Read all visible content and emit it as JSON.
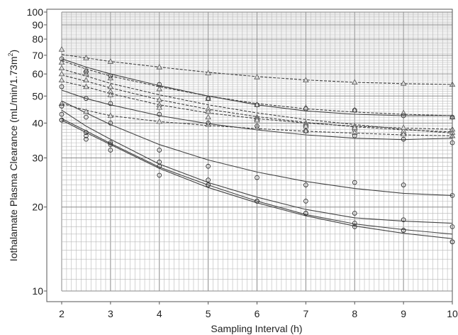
{
  "chart_data": {
    "type": "scatter",
    "title": "",
    "xlabel": "Sampling Interval (h)",
    "ylabel_main": "Iothalamate Plasma Clearance (mL/min/1.73m",
    "ylabel_sup": "2",
    "ylabel_end": ")",
    "xscale": "linear",
    "yscale": "log",
    "xlim": [
      2,
      10
    ],
    "ylim": [
      10,
      100
    ],
    "grid": true,
    "legend": "none",
    "x_ticks": [
      2,
      3,
      4,
      5,
      6,
      7,
      8,
      9,
      10
    ],
    "y_ticks": [
      10,
      20,
      30,
      40,
      50,
      60,
      70,
      80,
      90,
      100
    ],
    "x": [
      2,
      2.5,
      3,
      4,
      5,
      6,
      7,
      8,
      9,
      10
    ],
    "series": [
      {
        "marker": "triangle",
        "line_style": "dashed",
        "values": [
          73.5,
          68.5,
          66.5,
          63.5,
          60.5,
          58.5,
          57,
          56,
          55.5,
          55
        ],
        "fit": [
          70.5,
          68.5,
          66.5,
          63.5,
          60.8,
          58.7,
          57.1,
          56.0,
          55.4,
          55.0
        ]
      },
      {
        "marker": "triangle",
        "line_style": "dashed",
        "values": [
          66,
          62,
          58,
          53,
          49,
          46.5,
          45.5,
          44.5,
          43.5,
          42
        ],
        "fit": [
          67.0,
          62.5,
          59.0,
          54.0,
          50.0,
          47.0,
          45.0,
          43.8,
          43.0,
          42.5
        ]
      },
      {
        "marker": "triangle",
        "line_style": "dashed",
        "values": [
          63,
          60,
          54,
          48.5,
          45,
          42,
          40,
          39,
          37,
          36
        ],
        "fit": [
          62.5,
          59.0,
          55.5,
          50.5,
          46.5,
          43.5,
          41.2,
          39.5,
          38.0,
          36.8
        ]
      },
      {
        "marker": "triangle",
        "line_style": "dashed",
        "values": [
          60,
          57,
          52,
          46.5,
          44,
          41.5,
          39.5,
          38,
          37.5,
          37
        ],
        "fit": [
          59.5,
          56.5,
          53.5,
          48.5,
          44.8,
          42.2,
          40.2,
          38.8,
          37.8,
          37.2
        ]
      },
      {
        "marker": "triangle",
        "line_style": "dashed",
        "values": [
          57,
          54,
          50.5,
          45.5,
          42,
          41,
          39,
          38.5,
          38.5,
          38
        ],
        "fit": [
          56.5,
          54.0,
          51.0,
          46.5,
          43.5,
          41.5,
          40.0,
          39.0,
          38.4,
          38.0
        ]
      },
      {
        "marker": "triangle",
        "line_style": "dashed",
        "values": [
          47,
          44,
          42.5,
          40.5,
          39.5,
          38.5,
          37.5,
          37,
          36.5,
          36
        ],
        "fit": [
          47.0,
          44.5,
          42.5,
          40.5,
          39.2,
          38.2,
          37.4,
          36.8,
          36.3,
          36.0
        ]
      },
      {
        "marker": "circle",
        "line_style": "solid",
        "values": [
          68,
          61,
          59,
          55,
          49,
          46.5,
          45,
          44.5,
          42.5,
          42
        ],
        "fit": [
          68.0,
          63.5,
          60.0,
          54.5,
          50.0,
          46.5,
          44.2,
          43.0,
          42.5,
          42.5
        ]
      },
      {
        "marker": "circle",
        "line_style": "solid",
        "values": [
          54,
          49,
          47,
          43,
          40,
          39,
          37.5,
          36,
          35,
          34
        ],
        "fit": [
          52.5,
          49.0,
          46.5,
          42.5,
          39.8,
          37.8,
          36.3,
          35.3,
          34.9,
          35.3
        ]
      },
      {
        "marker": "circle",
        "line_style": "solid",
        "values": [
          46,
          42,
          40,
          32,
          28,
          25.5,
          24,
          24.5,
          24,
          22
        ],
        "fit": [
          48.0,
          43.5,
          39.5,
          33.5,
          29.5,
          26.7,
          24.7,
          23.3,
          22.4,
          22.0
        ]
      },
      {
        "marker": "circle",
        "line_style": "solid",
        "values": [
          43,
          37,
          34,
          29,
          25,
          21,
          21,
          19,
          18,
          17
        ],
        "fit": [
          44.5,
          39.0,
          35.0,
          28.5,
          24.5,
          21.7,
          19.6,
          18.3,
          17.8,
          17.5
        ]
      },
      {
        "marker": "circle",
        "line_style": "solid",
        "values": [
          41,
          36,
          33.5,
          28,
          24,
          21,
          19,
          17.5,
          16.5,
          15
        ],
        "fit": [
          41.5,
          37.5,
          33.8,
          27.8,
          24.0,
          21.0,
          18.8,
          17.4,
          16.6,
          16.0
        ]
      },
      {
        "marker": "circle",
        "line_style": "solid",
        "values": [
          41,
          35,
          32,
          26,
          24,
          21,
          19,
          17,
          16.5,
          15
        ],
        "fit": [
          41.0,
          37.0,
          33.5,
          27.5,
          23.5,
          20.7,
          18.6,
          17.1,
          16.1,
          15.4
        ]
      }
    ]
  }
}
